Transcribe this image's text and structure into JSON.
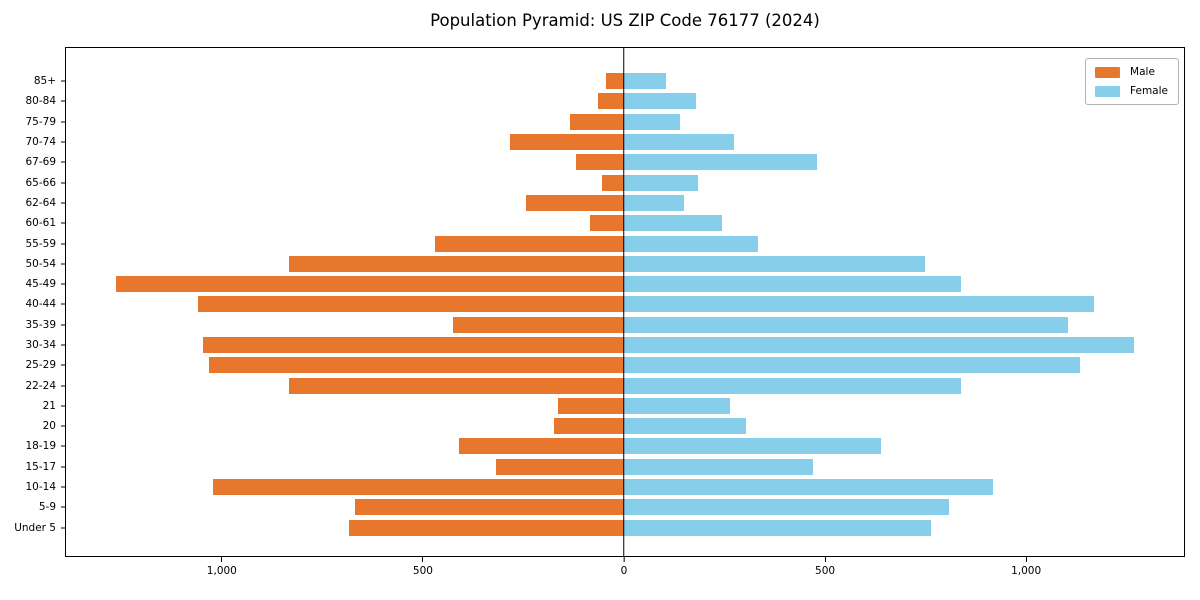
{
  "title": "Population Pyramid: US ZIP Code 76177 (2024)",
  "legend": {
    "male": "Male",
    "female": "Female"
  },
  "colors": {
    "male": "#e8772e",
    "female": "#87ceeb",
    "axis": "#000000"
  },
  "chart_data": {
    "type": "bar",
    "orientation": "horizontal",
    "title": "Population Pyramid: US ZIP Code 76177 (2024)",
    "categories": [
      "85+",
      "80-84",
      "75-79",
      "70-74",
      "67-69",
      "65-66",
      "62-64",
      "60-61",
      "55-59",
      "50-54",
      "45-49",
      "40-44",
      "35-39",
      "30-34",
      "25-29",
      "22-24",
      "21",
      "20",
      "18-19",
      "15-17",
      "10-14",
      "5-9",
      "Under 5"
    ],
    "series": [
      {
        "name": "Male",
        "values": [
          45,
          65,
          135,
          285,
          120,
          55,
          245,
          85,
          470,
          835,
          1265,
          1060,
          425,
          1050,
          1035,
          835,
          165,
          175,
          410,
          320,
          1025,
          670,
          685
        ]
      },
      {
        "name": "Female",
        "values": [
          105,
          180,
          140,
          275,
          480,
          185,
          150,
          245,
          335,
          750,
          840,
          1170,
          1105,
          1270,
          1135,
          840,
          265,
          305,
          640,
          470,
          920,
          810,
          765
        ]
      }
    ],
    "x_ticks": {
      "values": [
        -1000,
        -500,
        0,
        500,
        1000
      ],
      "labels": [
        "1,000",
        "500",
        "0",
        "500",
        "1,000"
      ]
    },
    "xlim": [
      -1390,
      1395
    ],
    "grid": false,
    "legend_position": "upper right",
    "note": "male values plotted leftward from zero, female rightward"
  }
}
